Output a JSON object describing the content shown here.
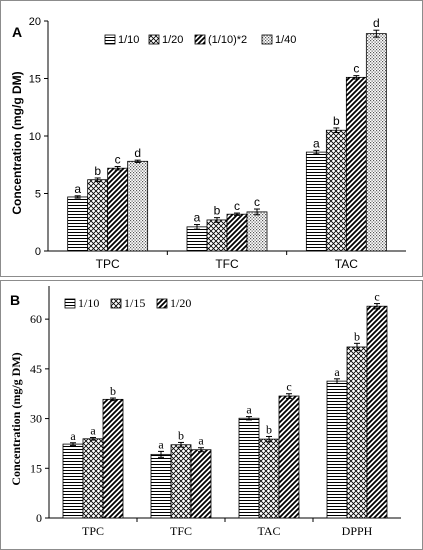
{
  "chart_data": [
    {
      "panel": "A",
      "type": "bar",
      "title": "",
      "xlabel": "",
      "ylabel": "Concentration (mg/g DM)",
      "ylim": [
        0,
        20
      ],
      "yticks": [
        0,
        5,
        10,
        15,
        20
      ],
      "categories": [
        "TPC",
        "TFC",
        "TAC"
      ],
      "legend_position": "top-left",
      "series": [
        {
          "name": "1/10",
          "pattern": "hlines",
          "values": [
            4.7,
            2.1,
            8.6
          ],
          "errors": [
            0.1,
            0.2,
            0.15
          ],
          "letters": [
            "a",
            "a",
            "a"
          ]
        },
        {
          "name": "1/20",
          "pattern": "crosshatch",
          "values": [
            6.2,
            2.7,
            10.5
          ],
          "errors": [
            0.15,
            0.2,
            0.2
          ],
          "letters": [
            "b",
            "b",
            "b"
          ]
        },
        {
          "name": "(1/10)*2",
          "pattern": "diagonal",
          "values": [
            7.2,
            3.2,
            15.1
          ],
          "errors": [
            0.15,
            0.1,
            0.15
          ],
          "letters": [
            "c",
            "c",
            "c"
          ]
        },
        {
          "name": "1/40",
          "pattern": "dots",
          "values": [
            7.8,
            3.4,
            18.9
          ],
          "errors": [
            0.1,
            0.25,
            0.3
          ],
          "letters": [
            "d",
            "c",
            "d"
          ]
        }
      ]
    },
    {
      "panel": "B",
      "type": "bar",
      "title": "",
      "xlabel": "",
      "ylabel": "Concentration (mg/g DM)",
      "ylim": [
        0,
        70
      ],
      "yticks": [
        0,
        15,
        30,
        45,
        60
      ],
      "categories": [
        "TPC",
        "TFC",
        "TAC",
        "DPPH"
      ],
      "legend_position": "top-left",
      "series": [
        {
          "name": "1/10",
          "pattern": "hlines",
          "values": [
            22.3,
            19.2,
            30.1,
            41.3
          ],
          "errors": [
            0.4,
            0.9,
            0.5,
            0.7
          ],
          "letters": [
            "a",
            "a",
            "a",
            "a"
          ]
        },
        {
          "name": "1/15",
          "pattern": "crosshatch",
          "values": [
            23.9,
            22.1,
            23.8,
            51.6
          ],
          "errors": [
            0.4,
            0.7,
            0.8,
            1.1
          ],
          "letters": [
            "a",
            "b",
            "b",
            "b"
          ]
        },
        {
          "name": "1/20",
          "pattern": "diagonal",
          "values": [
            35.8,
            20.6,
            36.8,
            63.9
          ],
          "errors": [
            0.4,
            0.6,
            0.7,
            0.8
          ],
          "letters": [
            "b",
            "a",
            "c",
            "c"
          ]
        }
      ]
    }
  ],
  "panel_labels": {
    "a": "A",
    "b": "B"
  }
}
